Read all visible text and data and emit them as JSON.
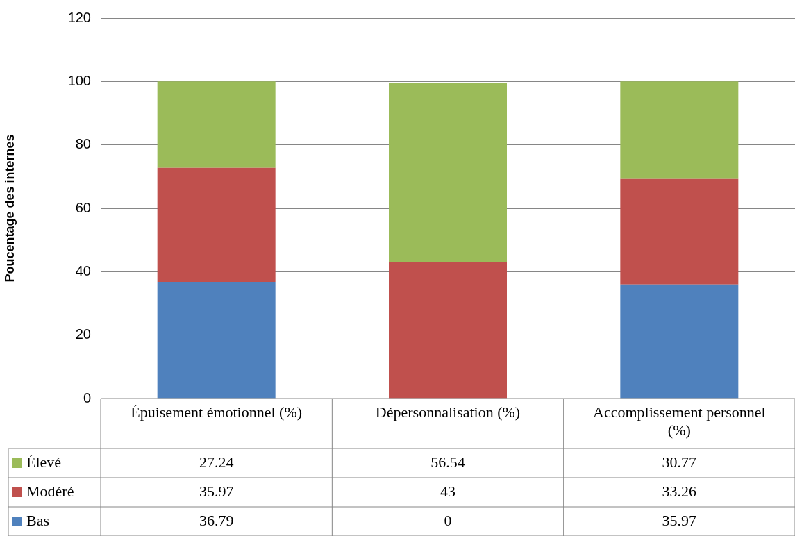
{
  "chart_data": {
    "type": "bar",
    "stacked": true,
    "ylabel": "Poucentage des internes",
    "categories": [
      "Épuisement émotionnel (%)",
      "Dépersonnalisation (%)",
      "Accomplissement personnel (%)"
    ],
    "series": [
      {
        "name": "Bas",
        "color": "#4f81bd",
        "values": [
          36.79,
          0,
          35.97
        ]
      },
      {
        "name": "Modéré",
        "color": "#c0504d",
        "values": [
          35.97,
          43,
          33.26
        ]
      },
      {
        "name": "Élevé",
        "color": "#9bbb59",
        "values": [
          27.24,
          56.54,
          30.77
        ]
      }
    ],
    "ylim": [
      0,
      120
    ],
    "yticks": [
      0,
      20,
      40,
      60,
      80,
      100,
      120
    ],
    "grid": "y",
    "legend": "bottom left",
    "data_labels": true
  }
}
